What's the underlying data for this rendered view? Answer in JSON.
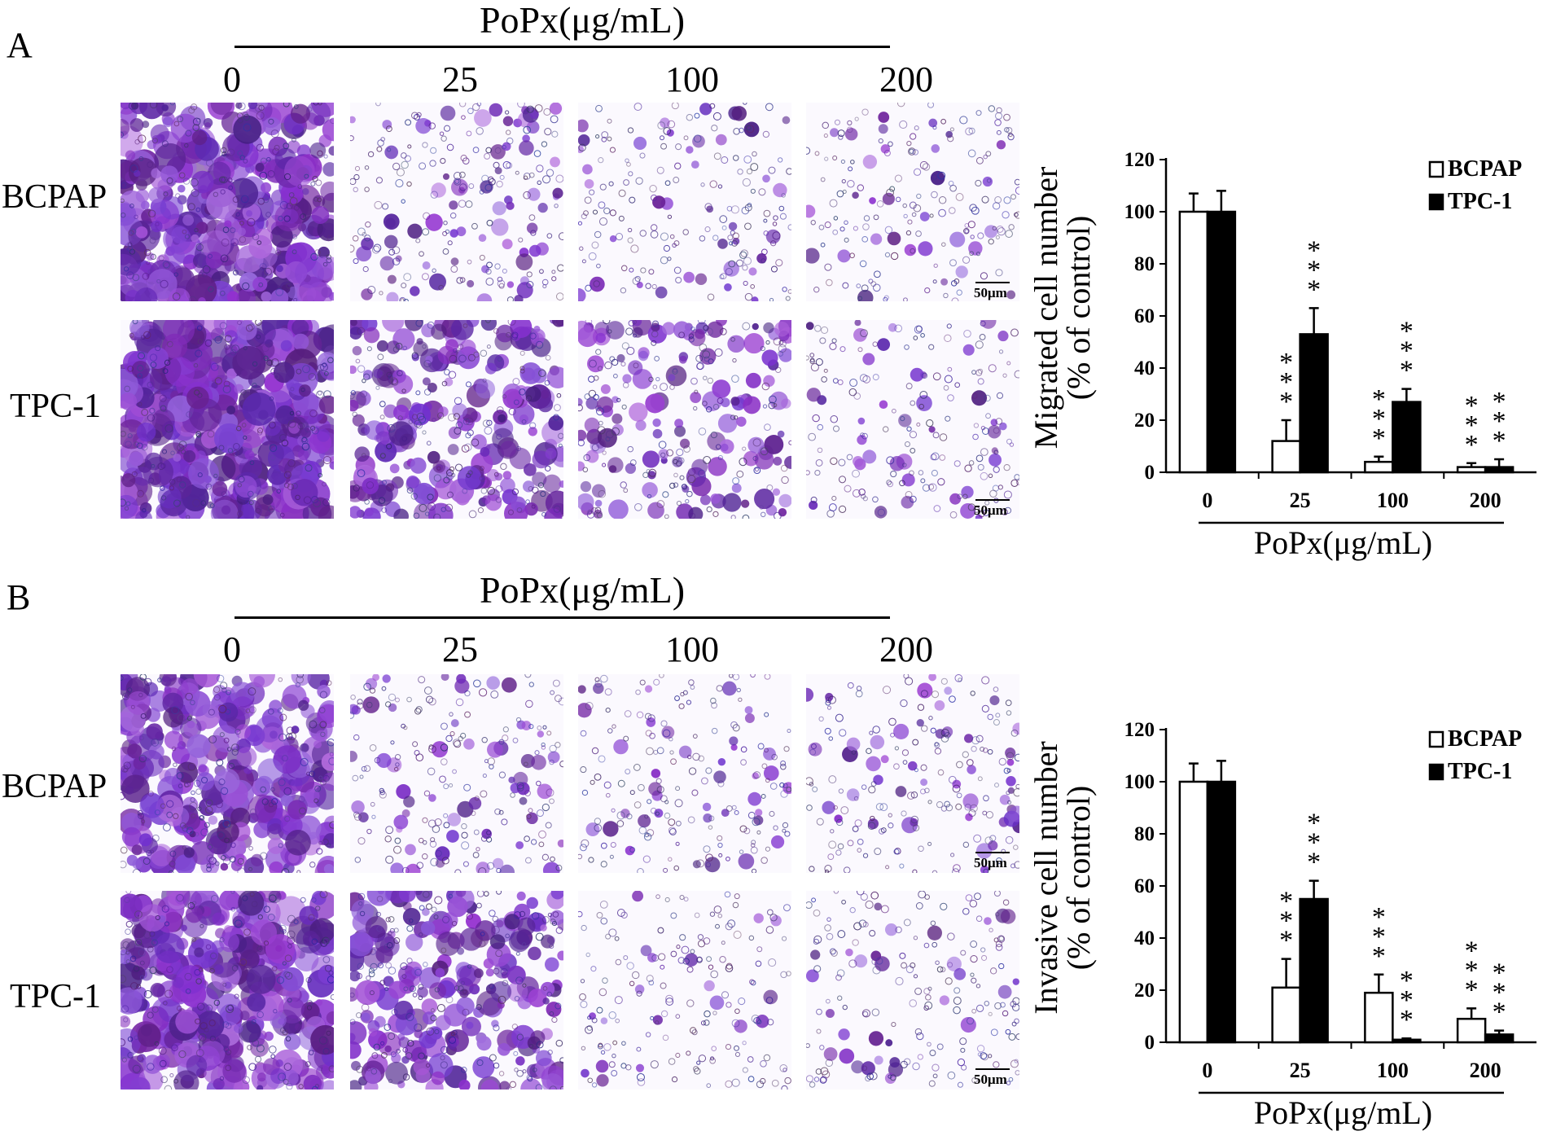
{
  "panels": [
    {
      "letter": "A",
      "header": "PoPx(μg/mL)",
      "doses": [
        "0",
        "25",
        "100",
        "200"
      ],
      "rows": [
        "BCPAP",
        "TPC-1"
      ],
      "scale_bar": "50μm"
    },
    {
      "letter": "B",
      "header": "PoPx(μg/mL)",
      "doses": [
        "0",
        "25",
        "100",
        "200"
      ],
      "rows": [
        "BCPAP",
        "TPC-1"
      ],
      "scale_bar": "50μm"
    }
  ],
  "colors": {
    "stain": "#7b3fd6",
    "bcpap_fill": "#ffffff",
    "tpc1_fill": "#000000"
  },
  "chart_data": [
    {
      "type": "bar",
      "categories": [
        "0",
        "25",
        "100",
        "200"
      ],
      "series": [
        {
          "name": "BCPAP",
          "values": [
            100,
            12,
            4,
            2
          ],
          "errors": [
            7,
            8,
            2,
            1.5
          ],
          "significance": [
            "",
            "***",
            "***",
            "***"
          ]
        },
        {
          "name": "TPC-1",
          "values": [
            100,
            53,
            27,
            2
          ],
          "errors": [
            8,
            10,
            5,
            3
          ],
          "significance": [
            "",
            "***",
            "***",
            "***"
          ]
        }
      ],
      "xlabel": "PoPx(μg/mL)",
      "ylabel": [
        "Migrated cell number",
        "(% of control)"
      ],
      "ylim": [
        0,
        120
      ],
      "yticks": [
        0,
        20,
        40,
        60,
        80,
        100,
        120
      ],
      "legend": "top-right"
    },
    {
      "type": "bar",
      "categories": [
        "0",
        "25",
        "100",
        "200"
      ],
      "series": [
        {
          "name": "BCPAP",
          "values": [
            100,
            21,
            19,
            9
          ],
          "errors": [
            7,
            11,
            7,
            4
          ],
          "significance": [
            "",
            "***",
            "***",
            "***"
          ]
        },
        {
          "name": "TPC-1",
          "values": [
            100,
            55,
            1,
            3
          ],
          "errors": [
            8,
            7,
            0.5,
            1.5
          ],
          "significance": [
            "",
            "***",
            "***",
            "***"
          ]
        }
      ],
      "xlabel": "PoPx(μg/mL)",
      "ylabel": [
        "Invasive cell number",
        "(% of control)"
      ],
      "ylim": [
        0,
        120
      ],
      "yticks": [
        0,
        20,
        40,
        60,
        80,
        100,
        120
      ],
      "legend": "top-right"
    }
  ]
}
